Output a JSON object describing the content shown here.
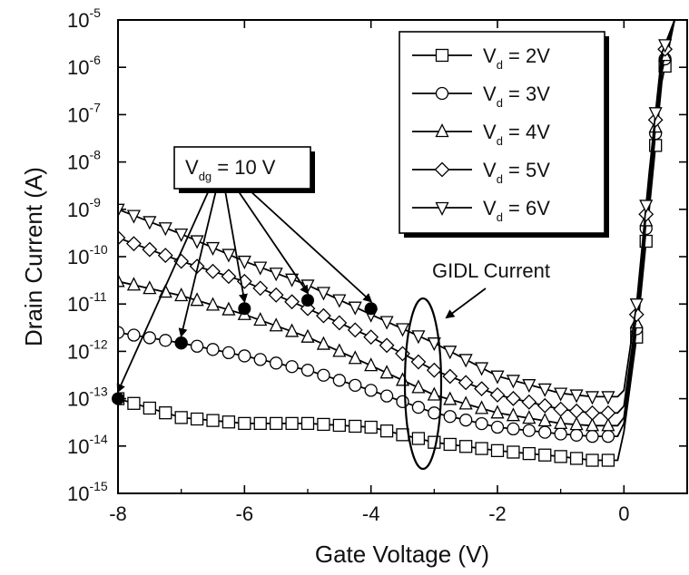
{
  "chart_data": {
    "type": "line",
    "xlabel": "Gate Voltage (V)",
    "ylabel": "Drain Current (A)",
    "xlim": [
      -8,
      1
    ],
    "ylim_log10": [
      -15,
      -5
    ],
    "yscale": "log",
    "x_ticks": [
      {
        "value": -8,
        "label": "-8"
      },
      {
        "value": -6,
        "label": "-6"
      },
      {
        "value": -4,
        "label": "-4"
      },
      {
        "value": -2,
        "label": "-2"
      },
      {
        "value": 0,
        "label": "0"
      }
    ],
    "y_ticks": [
      {
        "exp": -5,
        "base": "10",
        "sup": "-5"
      },
      {
        "exp": -6,
        "base": "10",
        "sup": "-6"
      },
      {
        "exp": -7,
        "base": "10",
        "sup": "-7"
      },
      {
        "exp": -8,
        "base": "10",
        "sup": "-8"
      },
      {
        "exp": -9,
        "base": "10",
        "sup": "-9"
      },
      {
        "exp": -10,
        "base": "10",
        "sup": "-10"
      },
      {
        "exp": -11,
        "base": "10",
        "sup": "-11"
      },
      {
        "exp": -12,
        "base": "10",
        "sup": "-12"
      },
      {
        "exp": -13,
        "base": "10",
        "sup": "-13"
      },
      {
        "exp": -14,
        "base": "10",
        "sup": "-14"
      },
      {
        "exp": -15,
        "base": "10",
        "sup": "-15"
      }
    ],
    "legend_position": "top-right",
    "series": [
      {
        "name": "Vd = 2V",
        "legend_main": "V",
        "legend_sub": "d",
        "legend_rest": " = 2V",
        "marker": "square",
        "x": [
          -8,
          -7,
          -6,
          -5,
          -4,
          -3,
          -2,
          -1,
          -0.5,
          -0.1,
          0,
          0.2,
          0.4,
          0.6,
          0.8,
          1.0
        ],
        "y": [
          "1e-13",
          "4e-14",
          "3e-14",
          "3e-14",
          "2.5e-14",
          "1.2e-14",
          "8e-15",
          "6e-15",
          "5e-15",
          "5e-15",
          "2e-14",
          "2e-12",
          "1e-9",
          "5e-7",
          "1e-5",
          "1e-5"
        ]
      },
      {
        "name": "Vd = 3V",
        "legend_main": "V",
        "legend_sub": "d",
        "legend_rest": " = 3V",
        "marker": "circle",
        "x": [
          -8,
          -7,
          -6,
          -5,
          -4,
          -3,
          -2,
          -1,
          -0.5,
          -0.1,
          0,
          0.2,
          0.4,
          0.6,
          0.8,
          1.0
        ],
        "y": [
          "2.5e-12",
          "1.5e-12",
          "8e-13",
          "4e-13",
          "1.5e-13",
          "5e-14",
          "2.5e-14",
          "1.8e-14",
          "1.6e-14",
          "1.6e-14",
          "3e-14",
          "3e-12",
          "2e-9",
          "8e-7",
          "1e-5",
          "1e-5"
        ]
      },
      {
        "name": "Vd = 4V",
        "legend_main": "V",
        "legend_sub": "d",
        "legend_rest": " = 4V",
        "marker": "triangle-up",
        "x": [
          -8,
          -7,
          -6,
          -5,
          -4,
          -3,
          -2,
          -1,
          -0.5,
          -0.1,
          0,
          0.2,
          0.4,
          0.6,
          0.8,
          1.0
        ],
        "y": [
          "3e-11",
          "1.5e-11",
          "6e-12",
          "2e-12",
          "5e-13",
          "1.2e-13",
          "5e-14",
          "3e-14",
          "2.7e-14",
          "2.7e-14",
          "4e-14",
          "4e-12",
          "3e-9",
          "1e-6",
          "1e-5",
          "1e-5"
        ]
      },
      {
        "name": "Vd = 5V",
        "legend_main": "V",
        "legend_sub": "d",
        "legend_rest": " = 5V",
        "marker": "diamond",
        "x": [
          -8,
          -7,
          -6,
          -5,
          -4,
          -3,
          -2,
          -1,
          -0.5,
          -0.1,
          0,
          0.2,
          0.4,
          0.6,
          0.8,
          1.0
        ],
        "y": [
          "2.5e-10",
          "8e-11",
          "3e-11",
          "8e-12",
          "2e-12",
          "4e-13",
          "1.2e-13",
          "6e-14",
          "5e-14",
          "5e-14",
          "7e-14",
          "6e-12",
          "4e-9",
          "1.5e-6",
          "1e-5",
          "1e-5"
        ]
      },
      {
        "name": "Vd = 6V",
        "legend_main": "V",
        "legend_sub": "d",
        "legend_rest": " = 6V",
        "marker": "triangle-down",
        "x": [
          -8,
          -7,
          -6,
          -5,
          -4,
          -3,
          -2,
          -1,
          -0.5,
          -0.1,
          0,
          0.2,
          0.4,
          0.6,
          0.8,
          1.0
        ],
        "y": [
          "1e-9",
          "3e-10",
          "8e-11",
          "2.5e-11",
          "6e-12",
          "1.5e-12",
          "3e-13",
          "1.3e-13",
          "1.1e-13",
          "1.1e-13",
          "1.5e-13",
          "1e-11",
          "6e-9",
          "2e-6",
          "1e-5",
          "1e-5"
        ]
      }
    ],
    "vdg_points": [
      {
        "x": -8,
        "y": "1e-13"
      },
      {
        "x": -7,
        "y": "1.5e-12"
      },
      {
        "x": -6,
        "y": "8e-12"
      },
      {
        "x": -5,
        "y": "1.2e-11"
      },
      {
        "x": -4,
        "y": "8e-12"
      }
    ],
    "annotations": {
      "vdg_main": "V",
      "vdg_sub": "dg",
      "vdg_rest": " = 10 V",
      "gidl": "GIDL Current"
    }
  }
}
